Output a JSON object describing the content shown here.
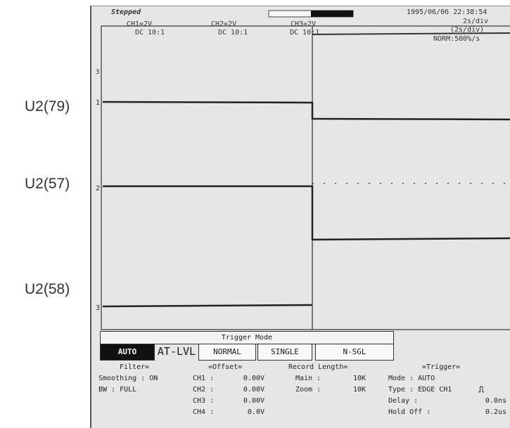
{
  "labels": [
    "U2(79)",
    "U2(57)",
    "U2(58)"
  ],
  "header": {
    "status": "Stepped",
    "datetime": "1995/06/06 22:38:54",
    "ch1": "CH1=2V",
    "ch1_coupling": "DC 10:1",
    "ch2": "CH2=2V",
    "ch2_coupling": "DC 10:1",
    "ch3": "CH3=2V",
    "ch3_coupling": "DC 10:1",
    "timebase": "2s/div",
    "timebase2": "(2s/div)",
    "rate": "NORM:500%/s"
  },
  "trigger": {
    "title": "Trigger Mode",
    "modes": [
      "AUTO",
      "AT-LVL",
      "NORMAL",
      "SINGLE",
      "N-SGL"
    ],
    "selected": "AUTO"
  },
  "settings": {
    "filter_title": "Filter=",
    "smoothing": "Smoothing : ON",
    "bw": "BW : FULL",
    "offset_title": "=Offset=",
    "offsets": [
      {
        "ch": "CH1 :",
        "val": "0.00V"
      },
      {
        "ch": "CH2 :",
        "val": "0.00V"
      },
      {
        "ch": "CH3 :",
        "val": "0.00V"
      },
      {
        "ch": "CH4 :",
        "val": "0.0V"
      }
    ],
    "record_title": "Record Length=",
    "main": "Main :",
    "main_val": "10K",
    "zoom": "Zoom :",
    "zoom_val": "10K",
    "trig_title": "=Trigger=",
    "mode": "Mode : AUTO",
    "type": "Type : EDGE CH1",
    "delay": "Delay :",
    "delay_val": "0.0ns",
    "holdoff": "Hold Off :",
    "holdoff_val": "0.2us"
  },
  "markers": [
    "1",
    "2",
    "3"
  ],
  "ref_label": "3"
}
